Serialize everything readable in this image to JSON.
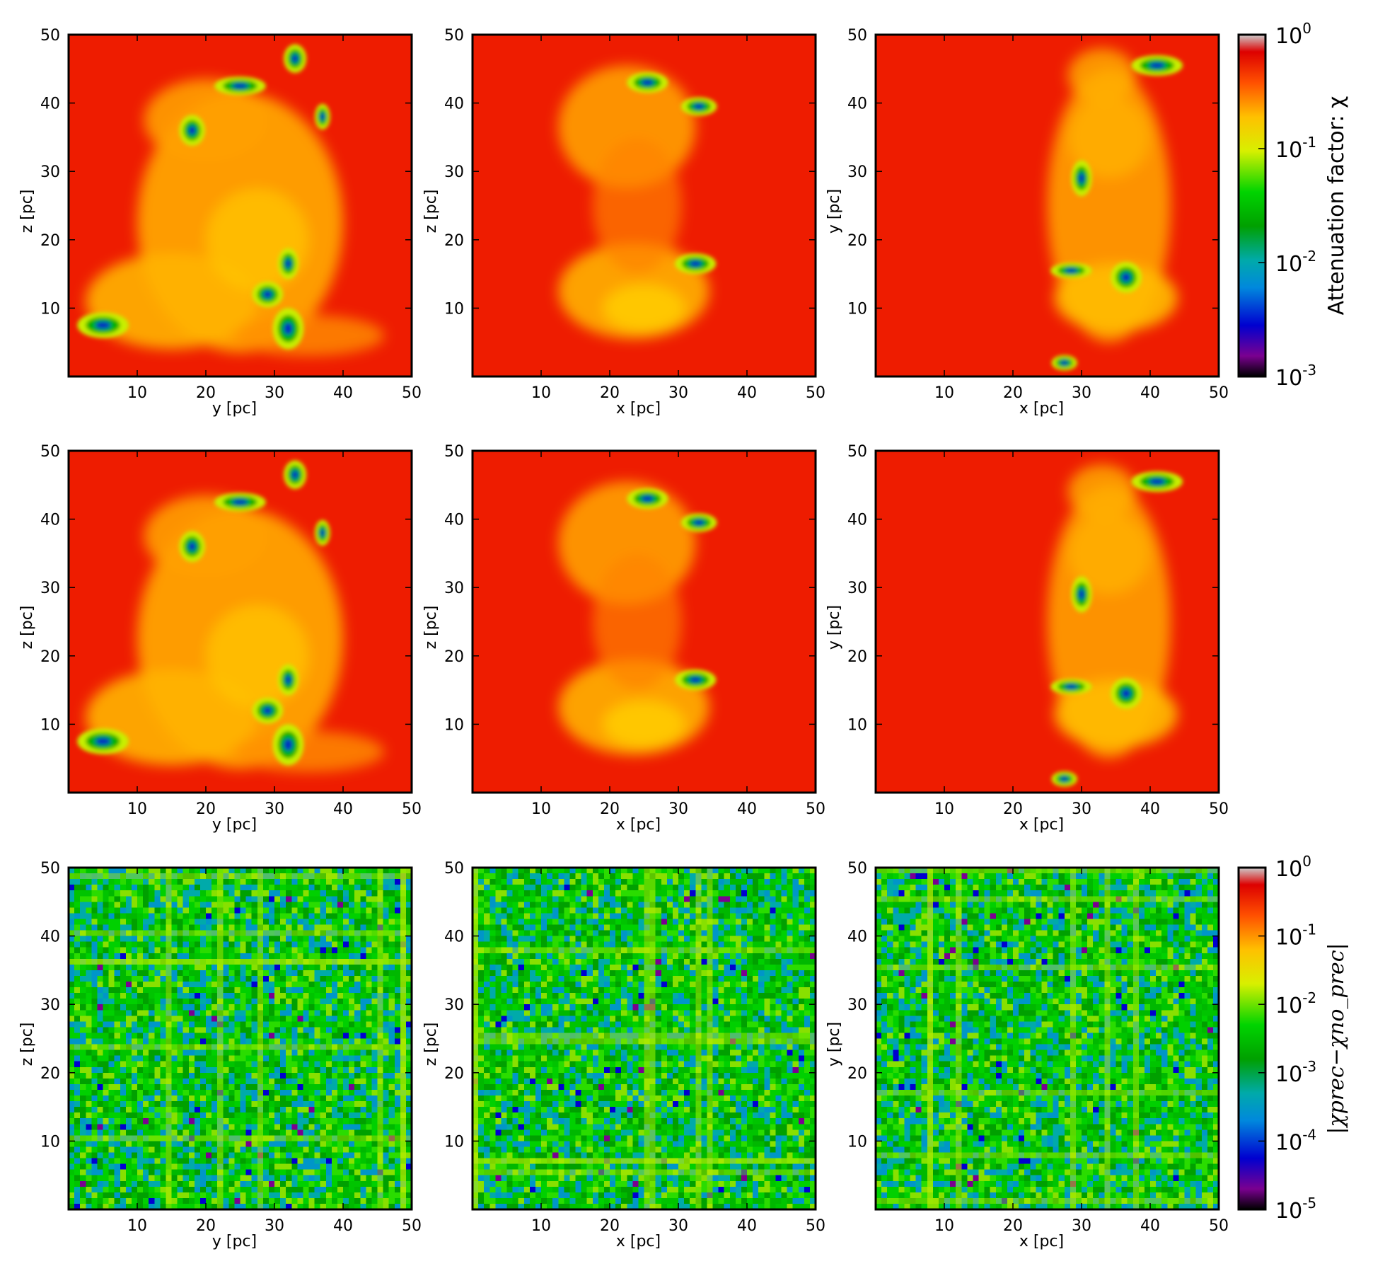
{
  "chart_data": {
    "type": "heatmap",
    "rows": [
      {
        "row": "attenuation",
        "panels": [
          {
            "xlabel": "y [pc]",
            "ylabel": "z [pc]",
            "xlim": [
              0,
              50
            ],
            "ylim": [
              0,
              50
            ]
          },
          {
            "xlabel": "x [pc]",
            "ylabel": "z [pc]",
            "xlim": [
              0,
              50
            ],
            "ylim": [
              0,
              50
            ]
          },
          {
            "xlabel": "x [pc]",
            "ylabel": "y [pc]",
            "xlim": [
              0,
              50
            ],
            "ylim": [
              0,
              50
            ]
          }
        ]
      },
      {
        "row": "attenuation",
        "panels": [
          {
            "xlabel": "y [pc]",
            "ylabel": "z [pc]",
            "xlim": [
              0,
              50
            ],
            "ylim": [
              0,
              50
            ]
          },
          {
            "xlabel": "x [pc]",
            "ylabel": "z [pc]",
            "xlim": [
              0,
              50
            ],
            "ylim": [
              0,
              50
            ]
          },
          {
            "xlabel": "x [pc]",
            "ylabel": "y [pc]",
            "xlim": [
              0,
              50
            ],
            "ylim": [
              0,
              50
            ]
          }
        ]
      },
      {
        "row": "difference",
        "panels": [
          {
            "xlabel": "y [pc]",
            "ylabel": "z [pc]",
            "xlim": [
              0,
              50
            ],
            "ylim": [
              0,
              50
            ]
          },
          {
            "xlabel": "x [pc]",
            "ylabel": "z [pc]",
            "xlim": [
              0,
              50
            ],
            "ylim": [
              0,
              50
            ]
          },
          {
            "xlabel": "x [pc]",
            "ylabel": "y [pc]",
            "xlim": [
              0,
              50
            ],
            "ylim": [
              0,
              50
            ]
          }
        ]
      }
    ],
    "xticks": [
      "10",
      "20",
      "30",
      "40",
      "50"
    ],
    "yticks": [
      "10",
      "20",
      "30",
      "40",
      "50"
    ],
    "colorbars": [
      {
        "label": "Attenuation factor: χ",
        "scale": "log",
        "range": [
          0.001,
          1
        ],
        "ticks": [
          {
            "base": "10",
            "exp": "0"
          },
          {
            "base": "10",
            "exp": "-1"
          },
          {
            "base": "10",
            "exp": "-2"
          },
          {
            "base": "10",
            "exp": "-3"
          }
        ]
      },
      {
        "label": "|χprec−χno_prec|",
        "scale": "log",
        "range": [
          1e-05,
          1
        ],
        "ticks": [
          {
            "base": "10",
            "exp": "0"
          },
          {
            "base": "10",
            "exp": "-1"
          },
          {
            "base": "10",
            "exp": "-2"
          },
          {
            "base": "10",
            "exp": "-3"
          },
          {
            "base": "10",
            "exp": "-4"
          },
          {
            "base": "10",
            "exp": "-5"
          }
        ]
      }
    ],
    "colormap": [
      "#000000",
      "#7a0090",
      "#0000d0",
      "#0088dd",
      "#00aaaa",
      "#00a000",
      "#00d400",
      "#d8f000",
      "#ffc000",
      "#ff5000",
      "#dd0000",
      "#cccccc"
    ]
  }
}
